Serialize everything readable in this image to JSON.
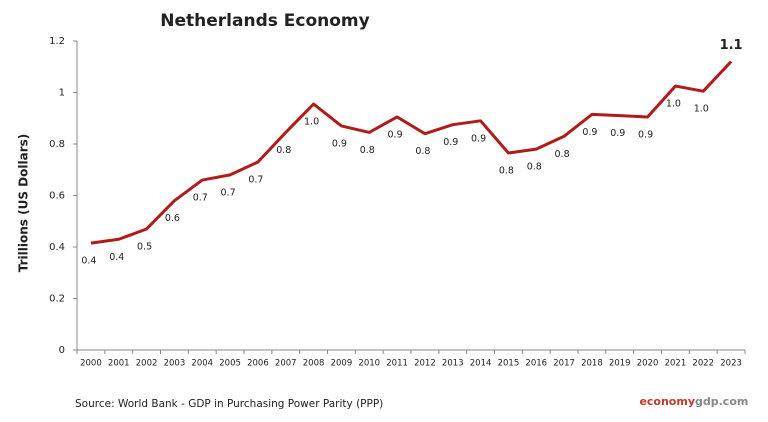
{
  "chart_data": {
    "type": "line",
    "title": "Netherlands Economy",
    "y_label": "Trillions (US Dollars)",
    "categories": [
      "2000",
      "2001",
      "2002",
      "2003",
      "2004",
      "2005",
      "2006",
      "2007",
      "2008",
      "2009",
      "2010",
      "2011",
      "2012",
      "2013",
      "2014",
      "2015",
      "2016",
      "2017",
      "2018",
      "2019",
      "2020",
      "2021",
      "2022",
      "2023"
    ],
    "series": [
      {
        "color": "#b01c1c",
        "values": [
          0.415,
          0.43,
          0.47,
          0.58,
          0.66,
          0.68,
          0.73,
          0.845,
          0.955,
          0.87,
          0.845,
          0.905,
          0.84,
          0.875,
          0.89,
          0.765,
          0.78,
          0.83,
          0.915,
          0.91,
          0.905,
          1.025,
          1.005,
          1.12
        ],
        "value_labels": [
          "0.4",
          "0.4",
          "0.5",
          "0.6",
          "0.7",
          "0.7",
          "0.7",
          "0.8",
          "1.0",
          "0.9",
          "0.8",
          "0.9",
          "0.8",
          "0.9",
          "0.9",
          "0.8",
          "0.8",
          "0.8",
          "0.9",
          "0.9",
          "0.9",
          "1.0",
          "1.0",
          "1.1"
        ]
      }
    ],
    "ylim": [
      0,
      1.2
    ],
    "yticks": [
      0,
      0.2,
      0.4,
      0.6,
      0.8,
      1,
      1.2
    ],
    "grid": false,
    "source": "Source:  World Bank -  GDP  in Purchasing Power Parity (PPP)",
    "brand": [
      "economy",
      "gdp.com"
    ]
  }
}
